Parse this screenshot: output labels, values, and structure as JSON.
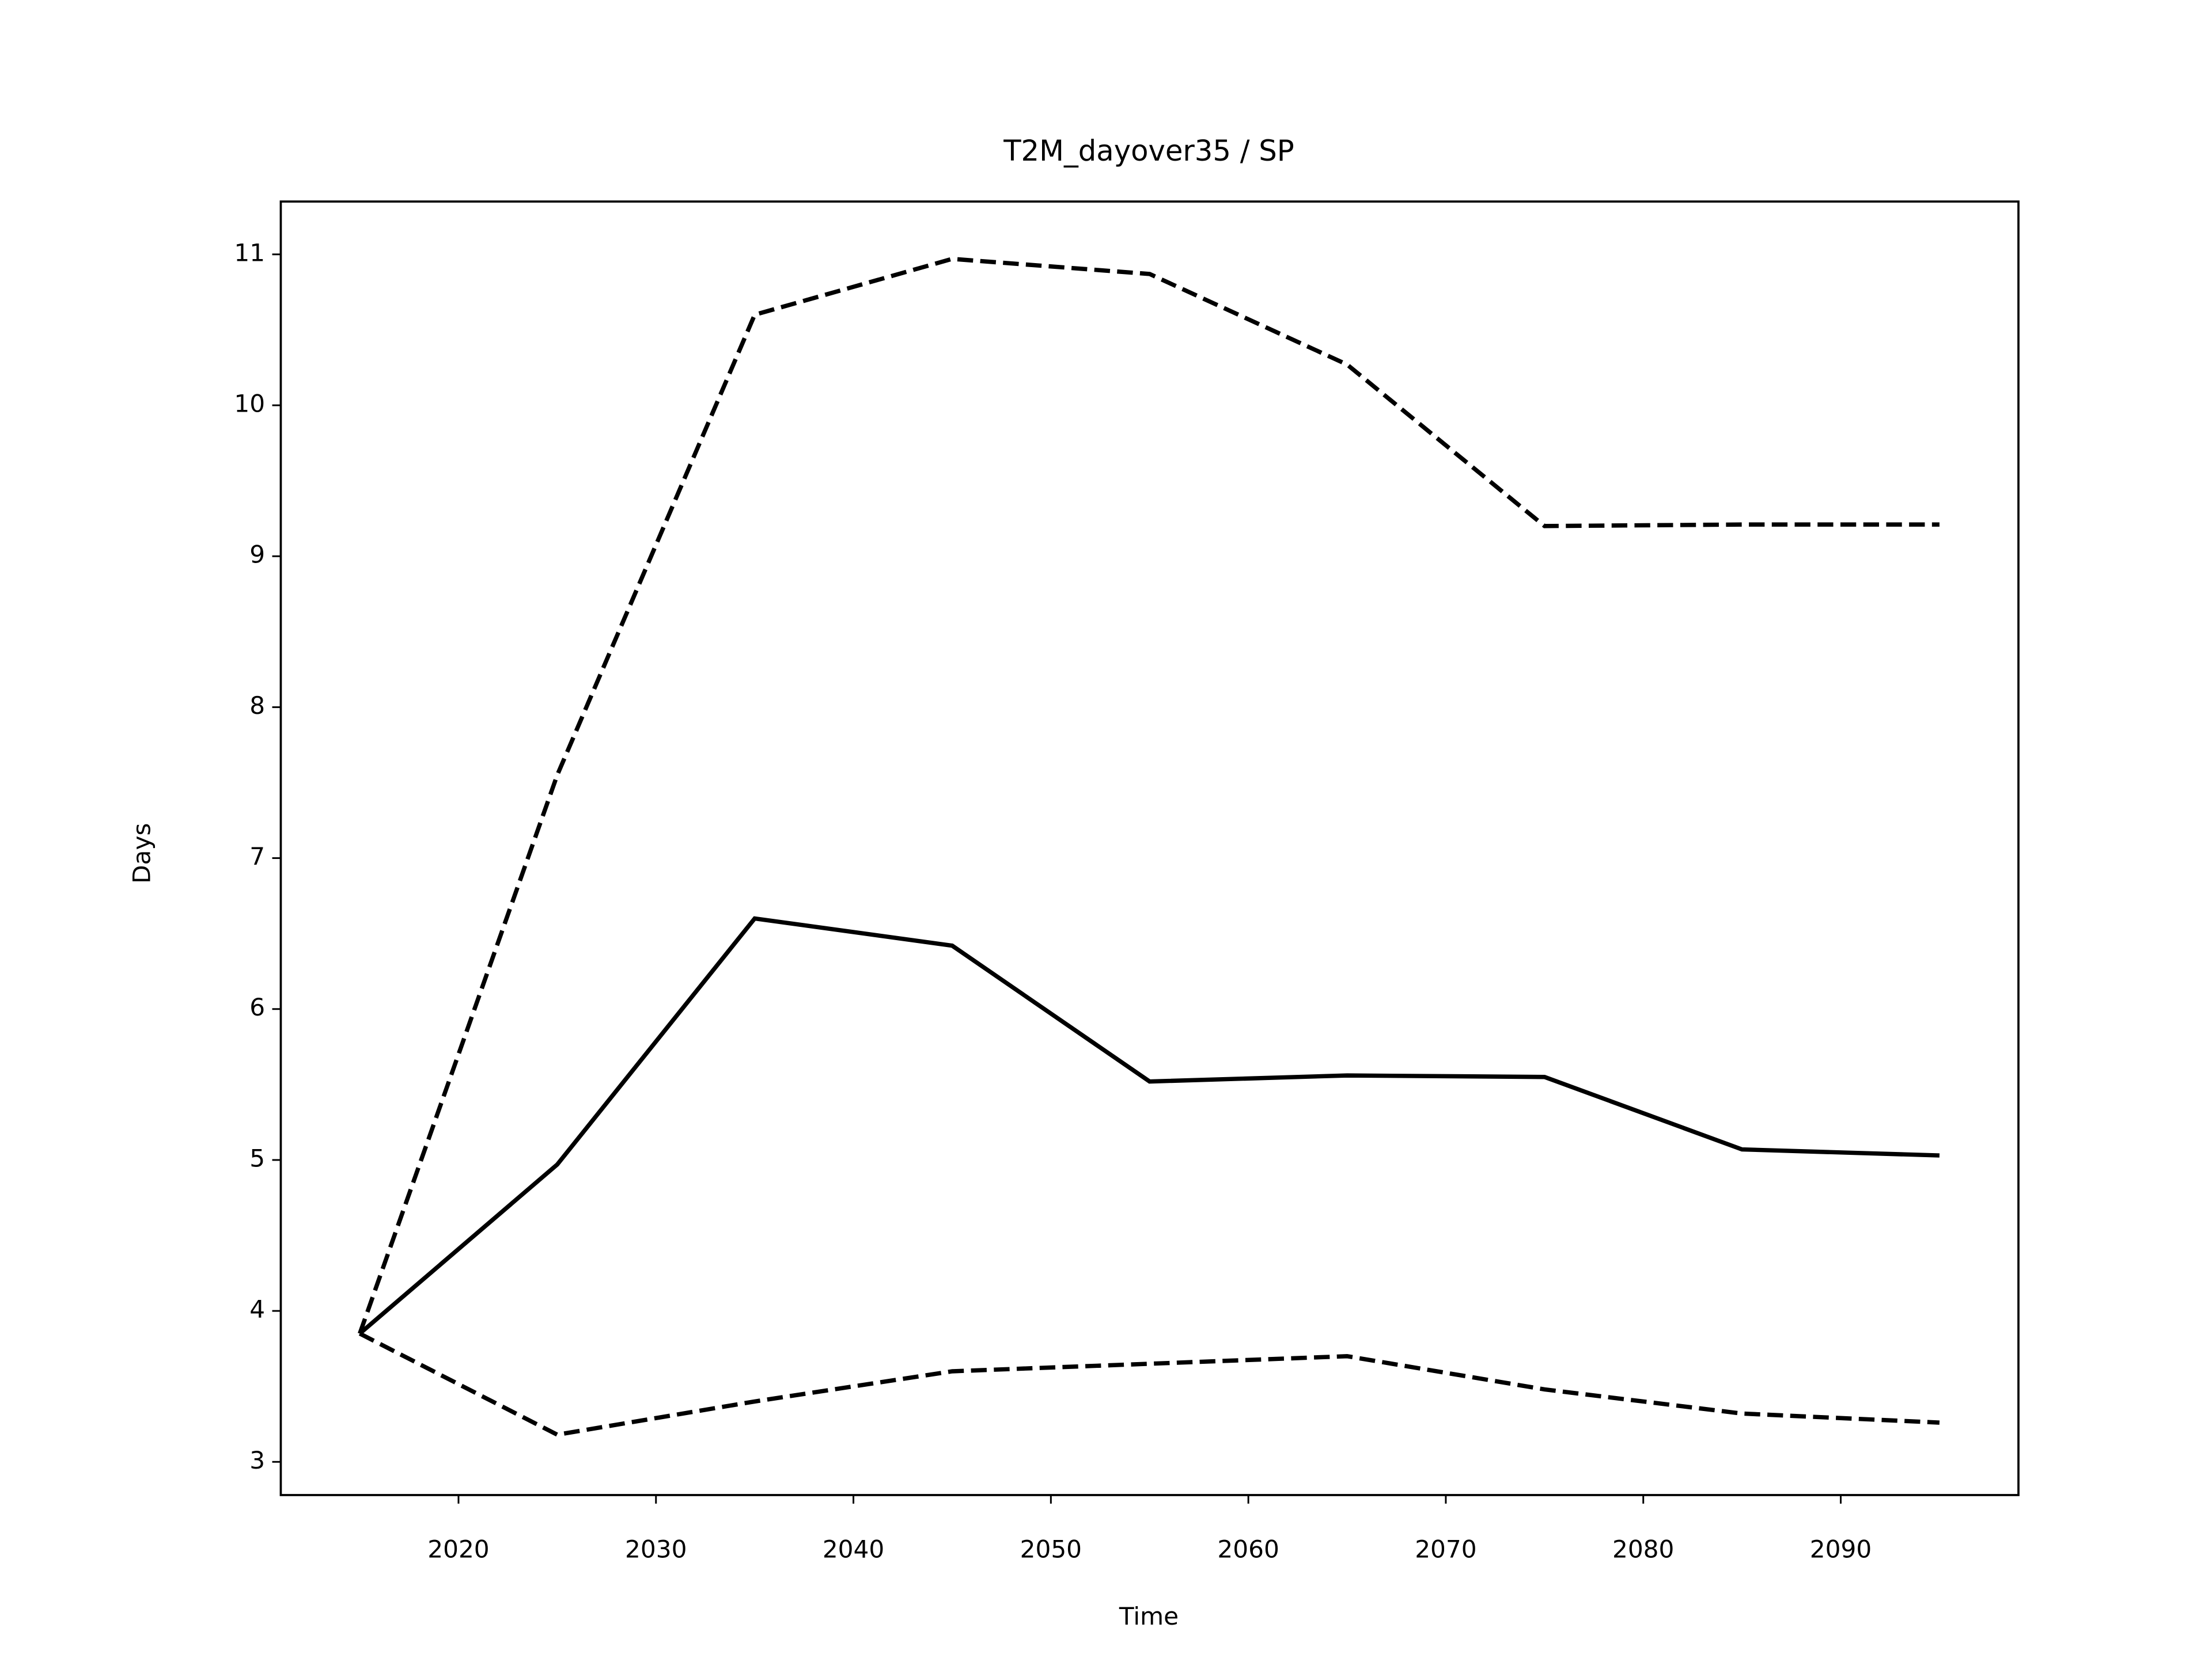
{
  "chart_data": {
    "type": "line",
    "title": "T2M_dayover35 / SP",
    "x_label": "Time",
    "y_label": "Days",
    "x": [
      2015,
      2025,
      2035,
      2045,
      2055,
      2065,
      2075,
      2085,
      2095
    ],
    "series": [
      {
        "color": "#000000",
        "linestyle": "solid",
        "values": [
          3.85,
          4.97,
          6.6,
          6.42,
          5.52,
          5.56,
          5.55,
          5.07,
          5.03
        ]
      },
      {
        "color": "#000000",
        "linestyle": "dashed",
        "values": [
          3.85,
          7.55,
          10.6,
          10.97,
          10.87,
          10.27,
          9.2,
          9.21,
          9.21
        ]
      },
      {
        "color": "#000000",
        "linestyle": "dashed",
        "values": [
          3.85,
          3.18,
          3.4,
          3.6,
          3.65,
          3.7,
          3.48,
          3.32,
          3.26
        ]
      }
    ],
    "xlim": [
      2011,
      2099
    ],
    "ylim": [
      2.78,
      11.35
    ],
    "xticks": [
      2020,
      2030,
      2040,
      2050,
      2060,
      2070,
      2080,
      2090
    ],
    "yticks": [
      3,
      4,
      5,
      6,
      7,
      8,
      9,
      10,
      11
    ],
    "grid": false
  }
}
